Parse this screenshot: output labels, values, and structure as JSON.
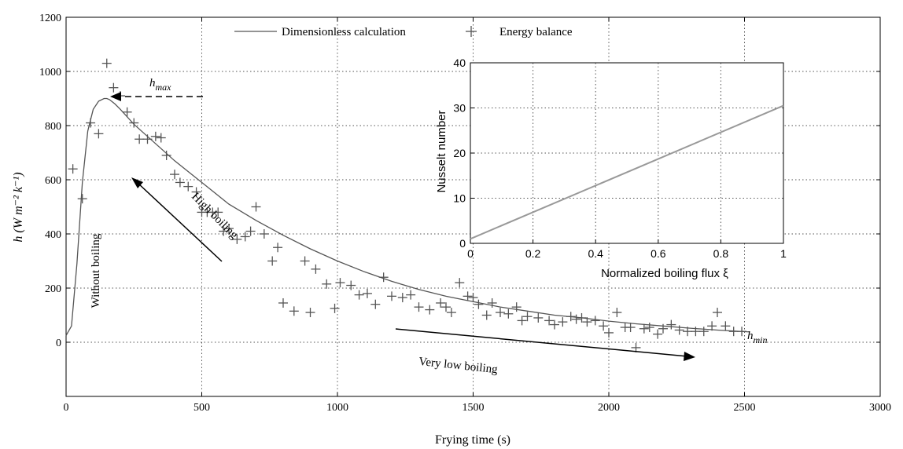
{
  "chart_data": [
    {
      "type": "scatter",
      "xlabel": "Frying time (s)",
      "ylabel": "h (W m⁻² k⁻¹)",
      "xlim": [
        0,
        3000
      ],
      "ylim": [
        -200,
        1200
      ],
      "xticks": [
        "0",
        "500",
        "1000",
        "1500",
        "2000",
        "2500",
        "3000"
      ],
      "yticks": [
        "0",
        "200",
        "400",
        "600",
        "800",
        "1000",
        "1200"
      ],
      "grid": true,
      "legend_position": "top",
      "series": [
        {
          "name": "Dimensionless calculation",
          "kind": "line",
          "color": "#555555",
          "x": [
            0,
            20,
            40,
            60,
            80,
            100,
            120,
            140,
            150,
            160,
            180,
            200,
            250,
            300,
            350,
            400,
            450,
            500,
            550,
            600,
            650,
            700,
            800,
            900,
            1000,
            1100,
            1200,
            1300,
            1400,
            1500,
            1600,
            1700,
            1800,
            1900,
            2000,
            2100,
            2200,
            2300,
            2400,
            2520
          ],
          "y": [
            25,
            60,
            290,
            590,
            780,
            860,
            890,
            900,
            900,
            896,
            880,
            860,
            805,
            760,
            715,
            670,
            630,
            590,
            550,
            510,
            480,
            450,
            395,
            345,
            300,
            260,
            225,
            195,
            170,
            150,
            130,
            115,
            100,
            90,
            78,
            68,
            60,
            52,
            45,
            38
          ]
        },
        {
          "name": "Energy balance",
          "kind": "scatter",
          "marker": "+",
          "color": "#555555",
          "x": [
            25,
            60,
            90,
            120,
            150,
            175,
            200,
            225,
            250,
            270,
            300,
            330,
            350,
            370,
            400,
            420,
            450,
            480,
            500,
            520,
            540,
            560,
            580,
            600,
            630,
            660,
            680,
            700,
            730,
            760,
            780,
            800,
            840,
            880,
            900,
            920,
            960,
            990,
            1010,
            1050,
            1080,
            1110,
            1140,
            1170,
            1200,
            1240,
            1270,
            1300,
            1340,
            1380,
            1400,
            1420,
            1450,
            1480,
            1500,
            1520,
            1550,
            1570,
            1600,
            1630,
            1660,
            1680,
            1700,
            1740,
            1780,
            1800,
            1830,
            1860,
            1880,
            1900,
            1920,
            1950,
            1980,
            2000,
            2030,
            2060,
            2080,
            2100,
            2130,
            2150,
            2180,
            2200,
            2230,
            2260,
            2290,
            2320,
            2350,
            2380,
            2400,
            2430,
            2460,
            2490
          ],
          "y": [
            640,
            530,
            810,
            770,
            1030,
            940,
            910,
            850,
            810,
            750,
            750,
            760,
            755,
            690,
            620,
            590,
            575,
            555,
            480,
            480,
            480,
            480,
            410,
            420,
            380,
            390,
            410,
            500,
            400,
            300,
            350,
            145,
            115,
            300,
            110,
            270,
            215,
            125,
            220,
            210,
            175,
            180,
            140,
            240,
            170,
            165,
            175,
            130,
            120,
            145,
            130,
            110,
            220,
            170,
            165,
            140,
            100,
            145,
            110,
            105,
            130,
            80,
            95,
            90,
            80,
            65,
            75,
            95,
            85,
            90,
            75,
            80,
            60,
            35,
            110,
            55,
            55,
            -20,
            50,
            55,
            30,
            50,
            65,
            45,
            40,
            40,
            40,
            60,
            110,
            60,
            40,
            40
          ]
        }
      ],
      "annotations": [
        {
          "text": "h",
          "subscript": "max",
          "at": [
            300,
            890
          ]
        },
        {
          "text": "High boiling",
          "at": [
            550,
            390
          ]
        },
        {
          "text": "Without boiling",
          "at": [
            130,
            280
          ]
        },
        {
          "text": "Very low boiling",
          "at": [
            1820,
            -60
          ]
        },
        {
          "text": "h",
          "subscript": "min",
          "at": [
            2640,
            40
          ]
        }
      ]
    },
    {
      "type": "line",
      "xlabel": "Normalized boiling flux ξ",
      "ylabel": "Nusselt number",
      "xlim": [
        0,
        1
      ],
      "ylim": [
        0,
        40
      ],
      "xticks": [
        "0",
        "0.2",
        "0.4",
        "0.6",
        "0.8",
        "1"
      ],
      "yticks": [
        "0",
        "10",
        "20",
        "30",
        "40"
      ],
      "grid": true,
      "legend_position": "inset, top-right",
      "series": [
        {
          "kind": "line",
          "color": "#999999",
          "x": [
            0,
            1
          ],
          "y": [
            1,
            30.5
          ]
        }
      ]
    }
  ]
}
